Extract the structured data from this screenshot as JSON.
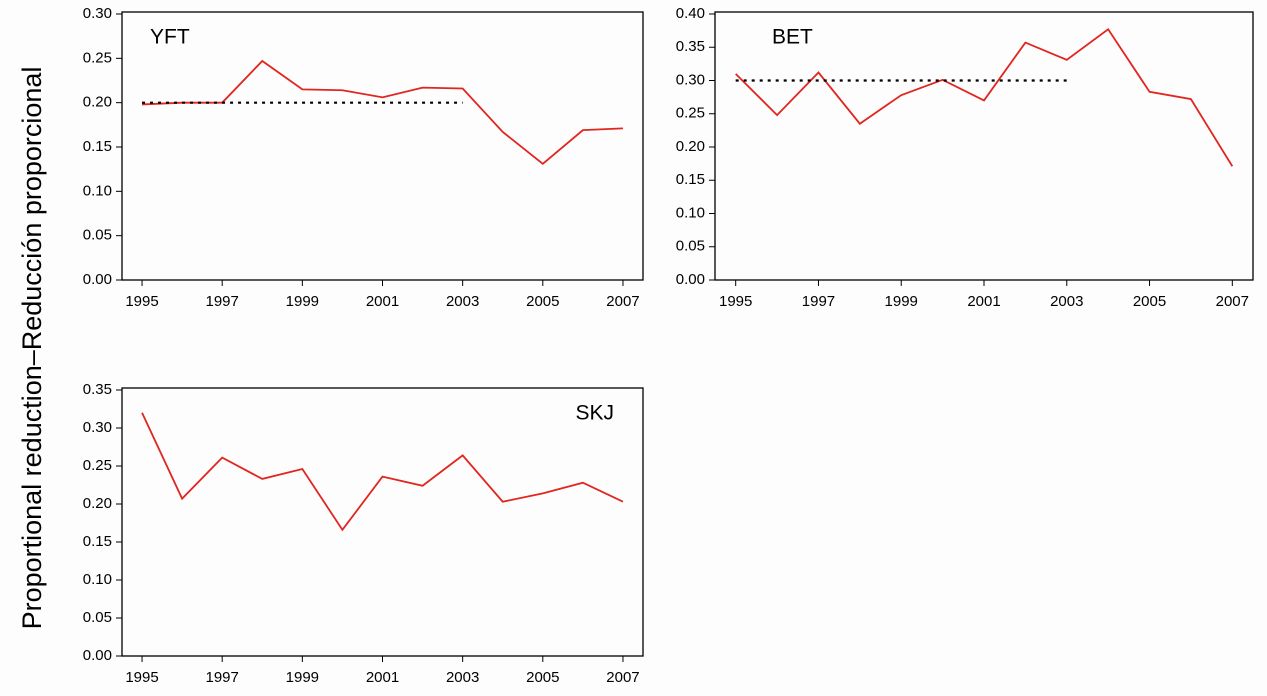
{
  "ylabel": "Proportional reduction–Reducción proporcional",
  "chart_data": [
    {
      "type": "line",
      "title": "YFT",
      "x": [
        1995,
        1996,
        1997,
        1998,
        1999,
        2000,
        2001,
        2002,
        2003,
        2004,
        2005,
        2006,
        2007
      ],
      "series": [
        {
          "color": "#e0261f",
          "values": [
            0.198,
            0.2,
            0.2,
            0.247,
            0.215,
            0.214,
            0.206,
            0.217,
            0.216,
            0.167,
            0.131,
            0.169,
            0.171
          ]
        },
        {
          "color": "#000000",
          "dashed": true,
          "values": [
            0.2,
            0.2,
            0.2,
            0.2,
            0.2,
            0.2,
            0.2,
            0.2,
            0.2,
            null,
            null,
            null,
            null
          ]
        }
      ],
      "xlim": [
        1994.5,
        2007.5
      ],
      "xticks": [
        1995,
        1997,
        1999,
        2001,
        2003,
        2005,
        2007
      ],
      "ylim": [
        0,
        0.3
      ],
      "yticks": [
        {
          "value": 0,
          "label": "0.00"
        },
        {
          "value": 0.05,
          "label": "0.05"
        },
        {
          "value": 0.1,
          "label": "0.10"
        },
        {
          "value": 0.15,
          "label": "0.15"
        },
        {
          "value": 0.2,
          "label": "0.20"
        },
        {
          "value": 0.25,
          "label": "0.25"
        },
        {
          "value": 0.3,
          "label": "0.30"
        }
      ]
    },
    {
      "type": "line",
      "title": "BET",
      "x": [
        1995,
        1996,
        1997,
        1998,
        1999,
        2000,
        2001,
        2002,
        2003,
        2004,
        2005,
        2006,
        2007
      ],
      "series": [
        {
          "color": "#e0261f",
          "values": [
            0.31,
            0.248,
            0.312,
            0.235,
            0.278,
            0.301,
            0.27,
            0.357,
            0.331,
            0.377,
            0.283,
            0.272,
            0.171
          ]
        },
        {
          "color": "#000000",
          "dashed": true,
          "values": [
            0.3,
            0.3,
            0.3,
            0.3,
            0.3,
            0.3,
            0.3,
            0.3,
            0.3,
            null,
            null,
            null,
            null
          ]
        }
      ],
      "xlim": [
        1994.5,
        2007.5
      ],
      "xticks": [
        1995,
        1997,
        1999,
        2001,
        2003,
        2005,
        2007
      ],
      "ylim": [
        0,
        0.4
      ],
      "yticks": [
        {
          "value": 0,
          "label": "0.00"
        },
        {
          "value": 0.05,
          "label": "0.05"
        },
        {
          "value": 0.1,
          "label": "0.10"
        },
        {
          "value": 0.15,
          "label": "0.15"
        },
        {
          "value": 0.2,
          "label": "0.20"
        },
        {
          "value": 0.25,
          "label": "0.25"
        },
        {
          "value": 0.3,
          "label": "0.30"
        },
        {
          "value": 0.35,
          "label": "0.35"
        },
        {
          "value": 0.4,
          "label": "0.40"
        }
      ]
    },
    {
      "type": "line",
      "title": "SKJ",
      "x": [
        1995,
        1996,
        1997,
        1998,
        1999,
        2000,
        2001,
        2002,
        2003,
        2004,
        2005,
        2006,
        2007
      ],
      "series": [
        {
          "color": "#e0261f",
          "values": [
            0.32,
            0.207,
            0.261,
            0.233,
            0.246,
            0.166,
            0.236,
            0.224,
            0.264,
            0.203,
            0.214,
            0.228,
            0.203
          ]
        }
      ],
      "xlim": [
        1994.5,
        2007.5
      ],
      "xticks": [
        1995,
        1997,
        1999,
        2001,
        2003,
        2005,
        2007
      ],
      "ylim": [
        0,
        0.35
      ],
      "yticks": [
        {
          "value": 0,
          "label": "0.00"
        },
        {
          "value": 0.05,
          "label": "0.05"
        },
        {
          "value": 0.1,
          "label": "0.10"
        },
        {
          "value": 0.15,
          "label": "0.15"
        },
        {
          "value": 0.2,
          "label": "0.20"
        },
        {
          "value": 0.25,
          "label": "0.25"
        },
        {
          "value": 0.3,
          "label": "0.30"
        },
        {
          "value": 0.35,
          "label": "0.35"
        }
      ]
    }
  ]
}
